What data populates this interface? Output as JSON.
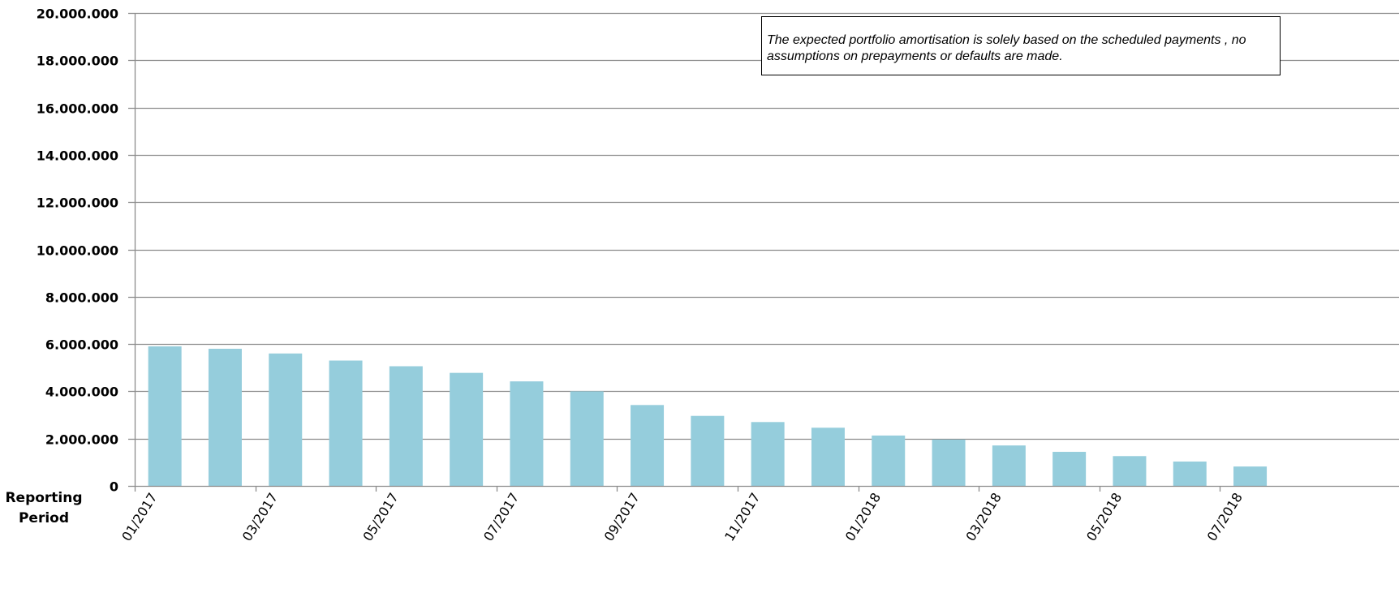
{
  "chart_data": {
    "type": "bar",
    "categories": [
      "01/2017",
      "02/2017",
      "03/2017",
      "04/2017",
      "05/2017",
      "06/2017",
      "07/2017",
      "08/2017",
      "09/2017",
      "10/2017",
      "11/2017",
      "12/2017",
      "01/2018",
      "02/2018",
      "03/2018",
      "04/2018",
      "05/2018",
      "06/2018",
      "07/2018"
    ],
    "x_tick_labels": [
      "01/2017",
      "",
      "03/2017",
      "",
      "05/2017",
      "",
      "07/2017",
      "",
      "09/2017",
      "",
      "11/2017",
      "",
      "01/2018",
      "",
      "03/2018",
      "",
      "05/2018",
      "",
      "07/2018"
    ],
    "values": [
      5900000,
      5800000,
      5600000,
      5300000,
      5060000,
      4780000,
      4420000,
      4000000,
      3420000,
      2960000,
      2700000,
      2460000,
      2130000,
      1960000,
      1710000,
      1440000,
      1260000,
      1030000,
      820000
    ],
    "ylim": [
      0,
      20000000
    ],
    "y_ticks": [
      0,
      2000000,
      4000000,
      6000000,
      8000000,
      10000000,
      12000000,
      14000000,
      16000000,
      18000000,
      20000000
    ],
    "y_tick_labels": [
      "0",
      "2.000.000",
      "4.000.000",
      "6.000.000",
      "8.000.000",
      "10.000.000",
      "12.000.000",
      "14.000.000",
      "16.000.000",
      "18.000.000",
      "20.000.000"
    ],
    "xlabel_line1": "Reporting",
    "xlabel_line2": "Period",
    "ylabel": "",
    "grid": true,
    "bar_color": "#95cddc",
    "grid_color": "#8c8c8c",
    "annotation": "The expected portfolio amortisation is solely based on the scheduled payments , no assumptions on prepayments or defaults are made."
  }
}
